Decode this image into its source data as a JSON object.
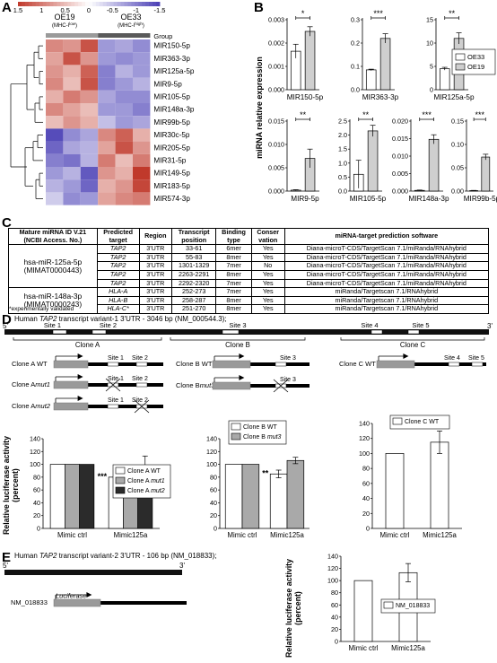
{
  "panels": {
    "A": "A",
    "B": "B",
    "C": "C",
    "D": "D",
    "E": "E"
  },
  "heatmap": {
    "scale_ticks": [
      "1.5",
      "1",
      "0.5",
      "0",
      "-0.5",
      "-1",
      "-1.5"
    ],
    "groups": [
      {
        "name": "OE19",
        "sub": "(MHC-I",
        "sup": "low",
        "close": ")"
      },
      {
        "name": "OE33",
        "sub": "(MHC-I",
        "sup": "high",
        "close": ")"
      }
    ],
    "group_label": "Group",
    "rows": [
      "MIR150-5p",
      "MIR363-3p",
      "MIR125a-5p",
      "MIR9-5p",
      "MIR105-5p",
      "MIR148a-3p",
      "MIR99b-5p",
      "MIR30c-5p",
      "MIR205-5p",
      "MIR31-5p",
      "MIR149-5p",
      "MIR183-5p",
      "MIR574-3p"
    ],
    "values": [
      [
        0.9,
        0.8,
        1.3,
        -0.8,
        -0.7,
        -0.9
      ],
      [
        0.7,
        1.3,
        0.8,
        -0.8,
        -0.9,
        -0.8
      ],
      [
        0.8,
        0.6,
        1.2,
        -1.0,
        -0.6,
        -0.8
      ],
      [
        0.9,
        0.5,
        1.3,
        -1.0,
        -0.8,
        -0.6
      ],
      [
        0.6,
        1.0,
        0.8,
        -0.7,
        -0.9,
        -0.9
      ],
      [
        0.9,
        0.7,
        0.5,
        -0.8,
        -0.8,
        -1.0
      ],
      [
        0.5,
        0.8,
        0.6,
        -0.5,
        -0.8,
        -0.7
      ],
      [
        -1.4,
        -0.9,
        -0.7,
        0.9,
        1.2,
        0.6
      ],
      [
        -1.2,
        -0.7,
        -0.6,
        0.7,
        1.3,
        0.8
      ],
      [
        -1.0,
        -1.1,
        -0.6,
        1.0,
        0.5,
        1.0
      ],
      [
        -0.8,
        -0.6,
        -1.3,
        0.8,
        0.6,
        1.5
      ],
      [
        -0.6,
        -0.8,
        -1.2,
        0.6,
        0.8,
        1.4
      ],
      [
        -0.4,
        -0.9,
        -0.8,
        0.7,
        0.9,
        1.0
      ]
    ]
  },
  "panelB": {
    "ylabel": "miRNA relative expression",
    "legend": [
      "OE33",
      "OE19"
    ],
    "charts": [
      {
        "name": "MIR150-5p",
        "ticks": [
          "0.000",
          "0.001",
          "0.002",
          "0.003"
        ],
        "ymax": 0.003,
        "values": [
          0.00165,
          0.0025
        ],
        "err": [
          0.0003,
          0.0002
        ],
        "sig": "*"
      },
      {
        "name": "MIR363-3p",
        "ticks": [
          "0.0",
          "0.1",
          "0.2",
          "0.3"
        ],
        "ymax": 0.3,
        "values": [
          0.085,
          0.22
        ],
        "err": [
          0.003,
          0.02
        ],
        "sig": "***"
      },
      {
        "name": "MIR125a-5p",
        "ticks": [
          "0",
          "5",
          "10",
          "15"
        ],
        "ymax": 15,
        "values": [
          4.5,
          11
        ],
        "err": [
          0.3,
          1.2
        ],
        "sig": "**"
      },
      {
        "name": "MIR9-5p",
        "ticks": [
          "0.000",
          "0.005",
          "0.010",
          "0.015"
        ],
        "ymax": 0.015,
        "values": [
          0.0002,
          0.007
        ],
        "err": [
          0.0001,
          0.002
        ],
        "sig": "**"
      },
      {
        "name": "MIR105-5p",
        "ticks": [
          "0.0",
          "0.5",
          "1.0",
          "1.5",
          "2.0",
          "2.5"
        ],
        "ymax": 2.5,
        "values": [
          0.6,
          2.15
        ],
        "err": [
          0.5,
          0.2
        ],
        "sig": "**"
      },
      {
        "name": "MIR148a-3p",
        "ticks": [
          "0.000",
          "0.005",
          "0.010",
          "0.015",
          "0.020"
        ],
        "ymax": 0.02,
        "values": [
          0.0002,
          0.0148
        ],
        "err": [
          0.0001,
          0.0013
        ],
        "sig": "***"
      },
      {
        "name": "MIR99b-5p",
        "ticks": [
          "0.00",
          "0.05",
          "0.10",
          "0.15"
        ],
        "ymax": 0.15,
        "values": [
          0.001,
          0.073
        ],
        "err": [
          0.0005,
          0.006
        ],
        "sig": "***"
      }
    ]
  },
  "tableC": {
    "headers": [
      "Mature miRNA ID V.21 (NCBI Access. No.)",
      "Predicted target",
      "Region",
      "Transcript position",
      "Binding type",
      "Conser vation",
      "miRNA-target prediction software"
    ],
    "header_lines": [
      [
        "Mature miRNA ID V.21",
        "(NCBI Access. No.)"
      ],
      [
        "Predicted",
        "target"
      ],
      [
        "Region"
      ],
      [
        "Transcript",
        "position"
      ],
      [
        "Binding",
        "type"
      ],
      [
        "Conser",
        "vation"
      ],
      [
        "miRNA-target prediction software"
      ]
    ],
    "groups": [
      {
        "mirna": "hsa-miR-125a-5p",
        "acc": "(MIMAT0000443)",
        "rows": [
          [
            "TAP2",
            "3'UTR",
            "33-61",
            "6mer",
            "Yes",
            "Diana-microT-CDS/TargetScan 7.1/miRanda/RNAhybrid"
          ],
          [
            "TAP2",
            "3'UTR",
            "55-83",
            "8mer",
            "Yes",
            "Diana-microT-CDS/TargetScan 7.1/miRanda/RNAhybrid"
          ],
          [
            "TAP2",
            "3'UTR",
            "1301-1329",
            "7mer",
            "No",
            "Diana-microT-CDS/TargetScan 7.1/miRanda/RNAhybrid"
          ],
          [
            "TAP2",
            "3'UTR",
            "2263-2291",
            "8mer",
            "Yes",
            "Diana-microT-CDS/TargetScan 7.1/miRanda/RNAhybrid"
          ],
          [
            "TAP2",
            "3'UTR",
            "2292-2320",
            "7mer",
            "Yes",
            "Diana-microT-CDS/TargetScan 7.1/miRanda/RNAhybrid"
          ]
        ]
      },
      {
        "mirna": "hsa-miR-148a-3p",
        "acc": "(MIMAT0000243)",
        "rows": [
          [
            "HLA-A",
            "3'UTR",
            "252-273",
            "7mer",
            "Yes",
            "miRanda/Targetscan 7.1/RNAhybrid"
          ],
          [
            "HLA-B",
            "3'UTR",
            "258-287",
            "8mer",
            "Yes",
            "miRanda/Targetscan 7.1/RNAhybrid"
          ],
          [
            "HLA-C*",
            "3'UTR",
            "251-270",
            "8mer",
            "Yes",
            "miRanda/Targetscan 7.1/RNAhybrid"
          ]
        ]
      }
    ],
    "footnote": "*experimentally validated"
  },
  "panelD": {
    "title_pre": "Human ",
    "title_gene": "TAP2",
    "title_post": " transcript variant-1 3'UTR - 3046 bp (NM_000544.3);",
    "five": "5'",
    "three": "3'",
    "sites": [
      "Site 1",
      "Site 2",
      "Site 3",
      "Site 4",
      "Site 5"
    ],
    "clones": [
      "Clone A",
      "Clone B",
      "Clone C"
    ],
    "constructs": {
      "a_wt": "Clone A WT",
      "a_mut1_pre": "Clone A",
      "a_mut1_suf": "mut1",
      "a_mut2_pre": "Clone A",
      "a_mut2_suf": "mut2",
      "b_wt": "Clone B WT",
      "b_mut3_pre": "Clone B",
      "b_mut3_suf": "mut3",
      "c_wt": "Clone C WT",
      "luciferase": "Luciferase"
    },
    "ylabel1": "Relative luciferase activity",
    "ylabel2": "(percent)",
    "chartA": {
      "ticks": [
        "0",
        "20",
        "40",
        "60",
        "80",
        "100",
        "120",
        "140"
      ],
      "ymax": 140,
      "categories": [
        "Mimic ctrl",
        "Mimic125a"
      ],
      "series": [
        {
          "name": "Clone A WT",
          "values": [
            100,
            80
          ],
          "err": [
            0,
            5
          ]
        },
        {
          "name": "Clone A mut1",
          "values": [
            100,
            94
          ],
          "err": [
            0,
            4
          ]
        },
        {
          "name": "Clone A mut2",
          "values": [
            100,
            96
          ],
          "err": [
            0,
            17
          ]
        }
      ],
      "legend": [
        [
          "Clone A WT",
          ""
        ],
        [
          "Clone A ",
          "mut1"
        ],
        [
          "Clone A ",
          "mut2"
        ]
      ],
      "sig": "***"
    },
    "chartB": {
      "ticks": [
        "0",
        "20",
        "40",
        "60",
        "80",
        "100",
        "120",
        "140"
      ],
      "ymax": 140,
      "categories": [
        "Mimic ctrl",
        "Mimic125a"
      ],
      "series": [
        {
          "name": "Clone B WT",
          "values": [
            100,
            85
          ],
          "err": [
            0,
            6
          ]
        },
        {
          "name": "Clone B mut3",
          "values": [
            100,
            106
          ],
          "err": [
            0,
            5
          ]
        }
      ],
      "legend": [
        [
          "Clone B WT",
          ""
        ],
        [
          "Clone B ",
          "mut3"
        ]
      ],
      "sig": "**"
    },
    "chartC": {
      "ticks": [
        "0",
        "20",
        "40",
        "60",
        "80",
        "100",
        "120",
        "140"
      ],
      "ymax": 140,
      "categories": [
        "Mimic ctrl",
        "Mimic125a"
      ],
      "series": [
        {
          "name": "Clone C WT",
          "values": [
            100,
            115
          ],
          "err": [
            0,
            15
          ]
        }
      ],
      "legend": [
        [
          "Clone C WT",
          ""
        ]
      ]
    }
  },
  "panelE": {
    "title_pre": "Human ",
    "title_gene": "TAP2",
    "title_post": " transcript variant-2 3'UTR - 106 bp (NM_018833);",
    "five": "5'",
    "three": "3'",
    "construct": "NM_018833",
    "luciferase": "Luciferase",
    "ylabel1": "Relative luciferase activity",
    "ylabel2": "(percent)",
    "chart": {
      "ticks": [
        "0",
        "20",
        "40",
        "60",
        "80",
        "100",
        "120",
        "140"
      ],
      "ymax": 140,
      "categories": [
        "Mimic ctrl",
        "Mimic125a"
      ],
      "series": [
        {
          "name": "NM_018833",
          "values": [
            100,
            113
          ],
          "err": [
            0,
            15
          ]
        }
      ],
      "legend": [
        [
          "NM_018833",
          ""
        ]
      ]
    }
  },
  "colors": {
    "red": "#c0392b",
    "blue": "#4a3fb5",
    "white": "#ffffff",
    "grey": "#a9a9a9",
    "dark": "#2b2b2b",
    "light": "#cfcfcf",
    "group1": "#9a9a9a",
    "group2": "#5a5a5a"
  }
}
